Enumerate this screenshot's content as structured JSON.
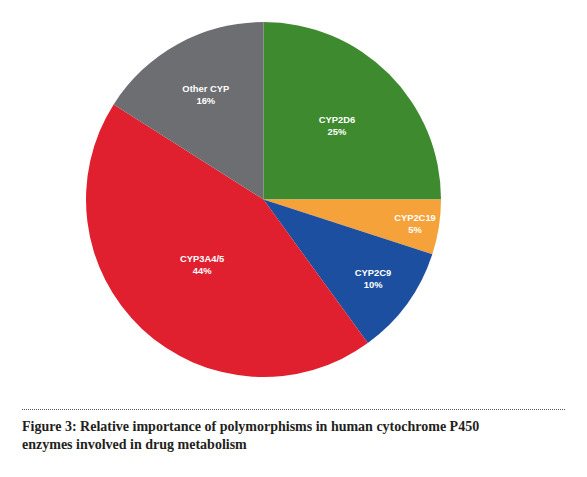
{
  "chart_data": {
    "type": "pie",
    "title": "Figure 3: Relative importance of polymorphisms in human cytochrome P450 enzymes involved in drug metabolism",
    "categories": [
      "CYP2D6",
      "CYP2C19",
      "CYP2C9",
      "CYP3A4/5",
      "Other CYP"
    ],
    "values": [
      25,
      5,
      10,
      44,
      16
    ],
    "value_labels": [
      "25%",
      "5%",
      "10%",
      "44%",
      "16%"
    ],
    "colors": [
      "#3e8a2e",
      "#f5a23a",
      "#1c4f9f",
      "#e0202f",
      "#6d6e71"
    ],
    "data_labels": true
  }
}
